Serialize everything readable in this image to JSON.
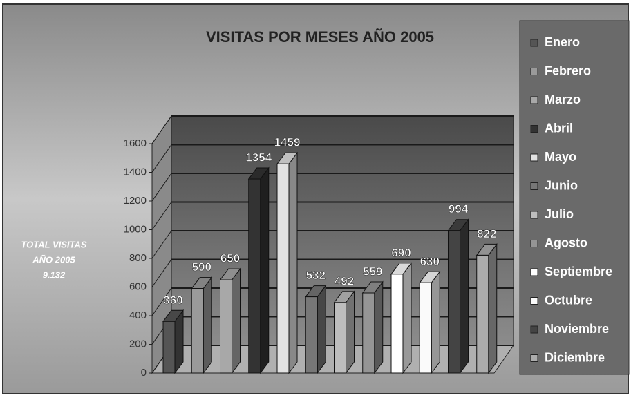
{
  "chart_data": {
    "type": "bar",
    "title": "VISITAS POR MESES AÑO 2005",
    "side_note": [
      "TOTAL VISITAS",
      "AÑO 2005",
      "9.132"
    ],
    "categories": [
      "Enero",
      "Febrero",
      "Marzo",
      "Abril",
      "Mayo",
      "Junio",
      "Julio",
      "Agosto",
      "Septiembre",
      "Octubre",
      "Noviembre",
      "Diciembre"
    ],
    "values": [
      360,
      590,
      650,
      1354,
      1459,
      532,
      492,
      559,
      690,
      630,
      994,
      822
    ],
    "colors": [
      "#555555",
      "#9a9a9a",
      "#a8a8a8",
      "#333333",
      "#e2e2e2",
      "#777777",
      "#bdbdbd",
      "#959595",
      "#ffffff",
      "#fafafa",
      "#444444",
      "#acacac"
    ],
    "ylim": [
      0,
      1600
    ],
    "yticks": [
      0,
      200,
      400,
      600,
      800,
      1000,
      1200,
      1400,
      1600
    ],
    "grid": true,
    "legend": "right"
  }
}
